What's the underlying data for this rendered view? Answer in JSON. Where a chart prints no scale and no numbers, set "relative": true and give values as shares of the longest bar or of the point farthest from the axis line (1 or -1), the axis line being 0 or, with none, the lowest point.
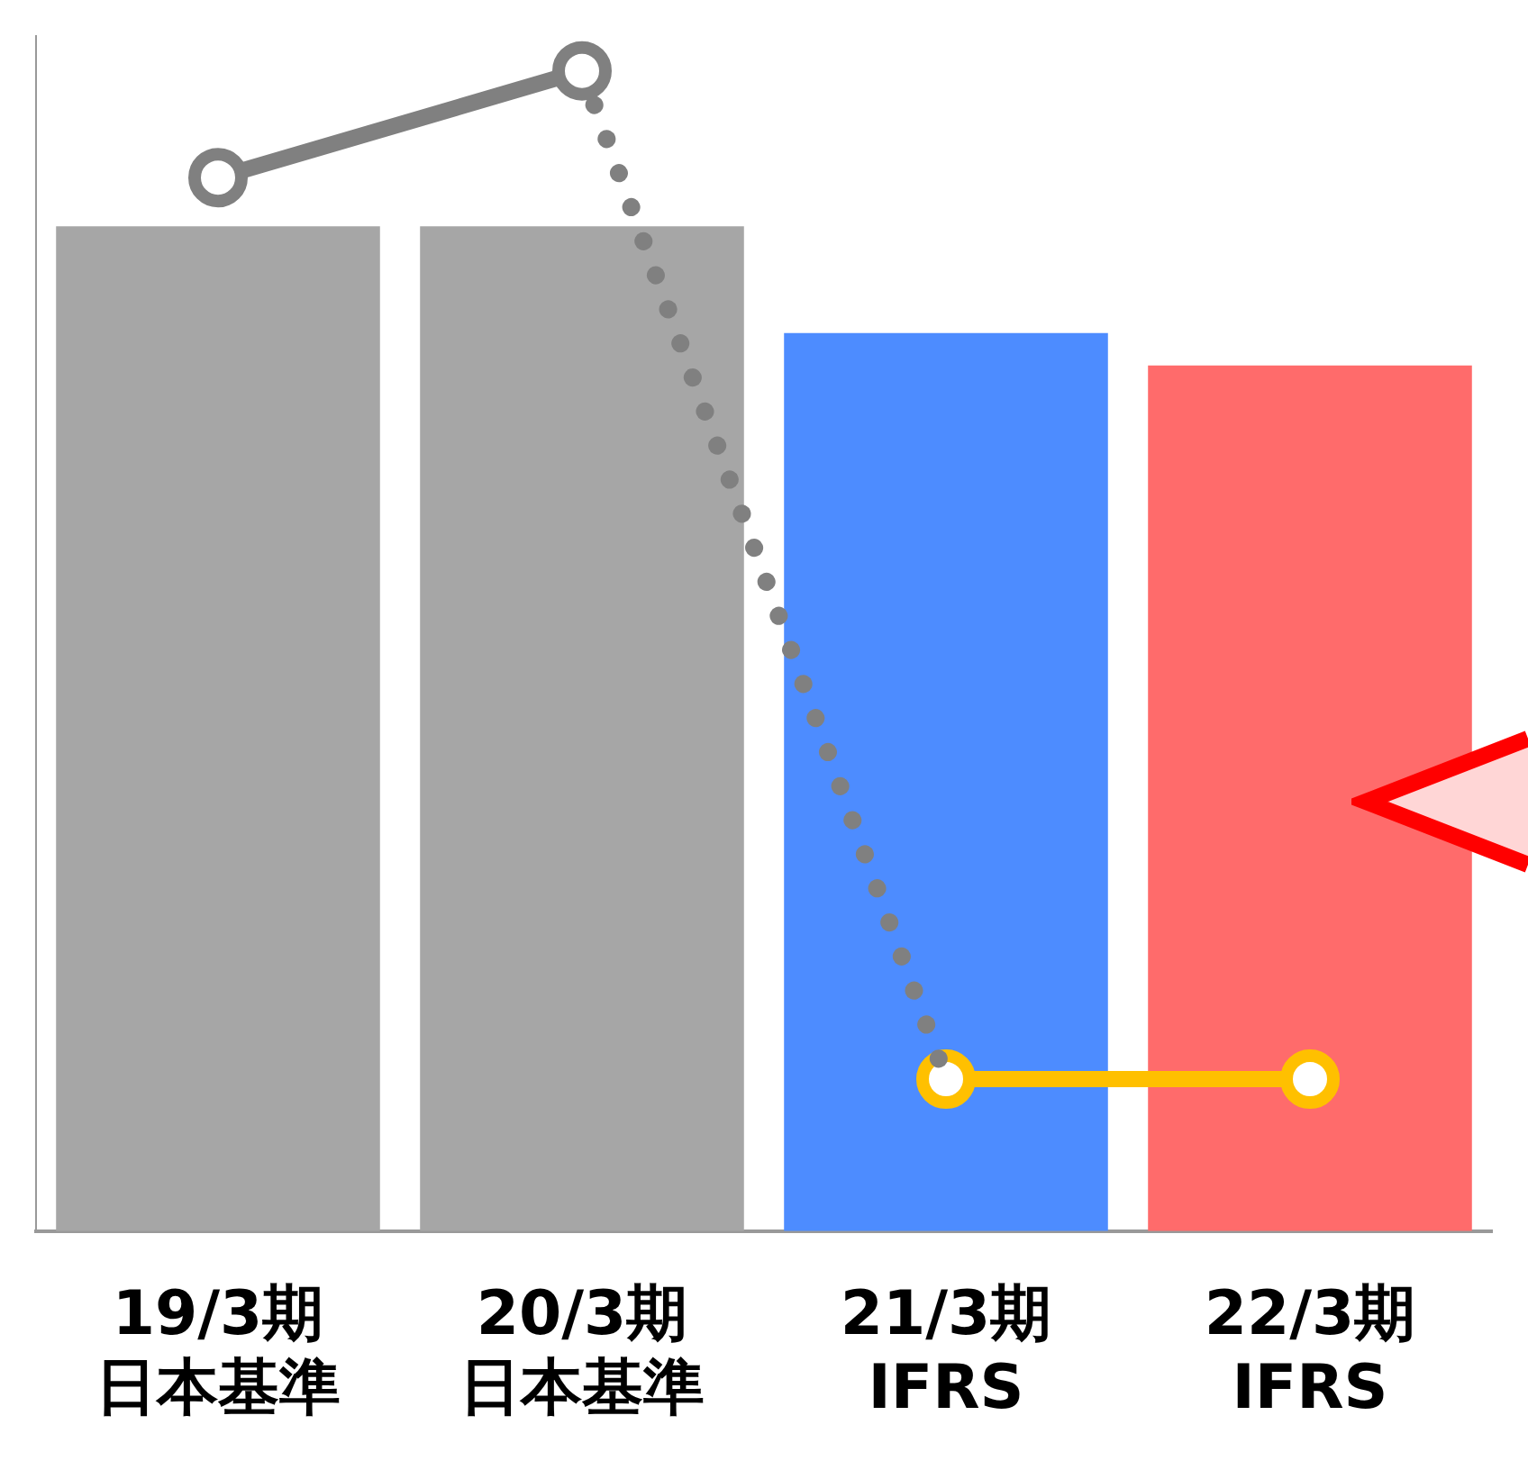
{
  "chart_data": {
    "type": "bar",
    "relative": true,
    "categories": [
      "19/3期日本基準",
      "20/3期日本基準",
      "21/3期IFRS",
      "22/3期IFRS"
    ],
    "legend": false,
    "grid": false,
    "series": [
      {
        "colors": [
          "#a6a6a6",
          "#a6a6a6",
          "#4d8cff",
          "#ff6b6b"
        ],
        "values": [
          0.866,
          0.866,
          0.774,
          0.746
        ]
      },
      {
        "type": "line",
        "color": "#808080",
        "marker": "circle",
        "line_style": "solid",
        "values": [
          0.908,
          1,
          null,
          null
        ]
      },
      {
        "type": "line",
        "color": "#808080",
        "marker": "none",
        "line_style": "dotted",
        "values": [
          null,
          1,
          0.131,
          null
        ]
      },
      {
        "type": "line",
        "color": "#ffc000",
        "marker": "circle",
        "line_style": "solid",
        "values": [
          null,
          null,
          0.131,
          0.131
        ]
      }
    ]
  }
}
